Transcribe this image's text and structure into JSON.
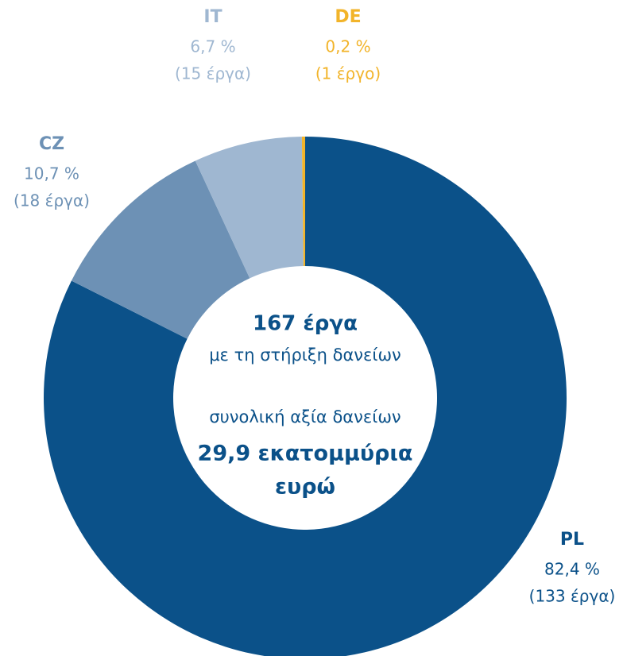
{
  "chart_data": {
    "type": "donut",
    "categories": [
      "PL",
      "CZ",
      "IT",
      "DE"
    ],
    "values": [
      82.4,
      10.7,
      6.7,
      0.2
    ],
    "value_labels": [
      "82,4 %",
      "10,7 %",
      "6,7 %",
      "0,2 %"
    ],
    "counts": [
      133,
      18,
      15,
      1
    ],
    "count_labels": [
      "(133 έργα)",
      "(18 έργα)",
      "(15 έργα)",
      "(1 έργο)"
    ],
    "colors": [
      "#0b5189",
      "#6d91b5",
      "#9fb7d1",
      "#f2b42a"
    ],
    "label_colors": [
      "#0b5189",
      "#6d91b5",
      "#9fb7d1",
      "#f2b42a"
    ],
    "center_text": [
      "167 έργα",
      "με τη στήριξη δανείων",
      "συνολική αξία δανείων",
      "29,9 εκατομμύρια",
      "ευρώ"
    ]
  }
}
